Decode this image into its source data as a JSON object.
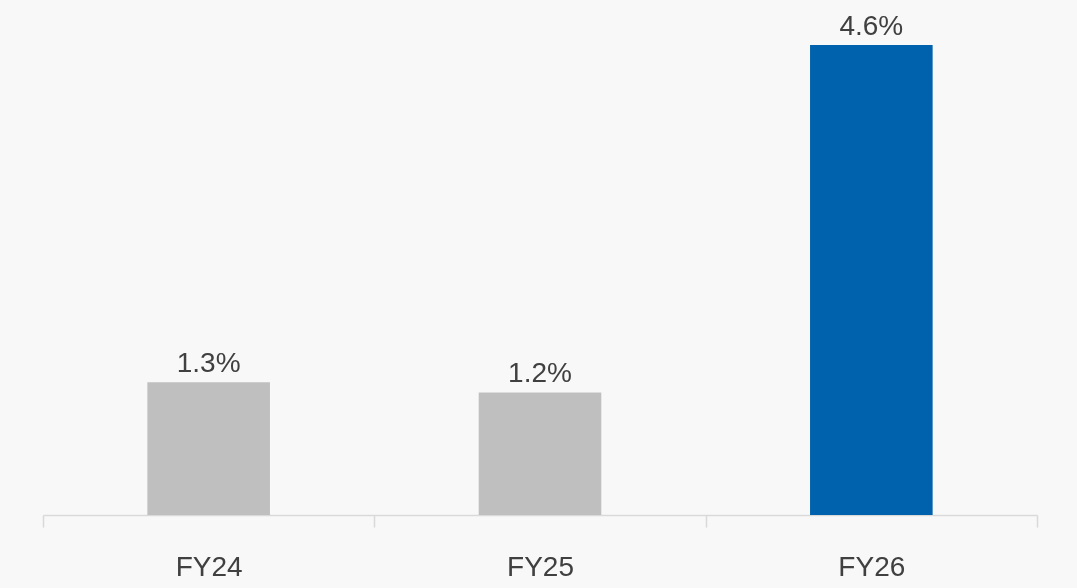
{
  "chart_data": {
    "type": "bar",
    "categories": [
      "FY24",
      "FY25",
      "FY26"
    ],
    "values": [
      1.3,
      1.2,
      4.6
    ],
    "colors": [
      "#bfbfbf",
      "#bfbfbf",
      "#0062ad"
    ],
    "value_labels": [
      "1.3%",
      "1.2%",
      "4.6%"
    ],
    "grid": false
  }
}
